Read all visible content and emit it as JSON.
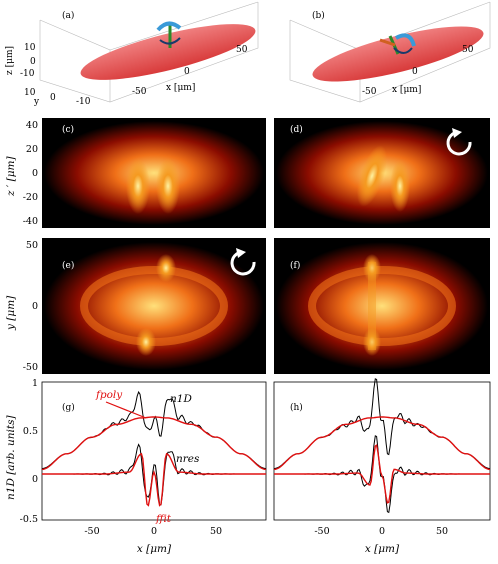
{
  "panels": {
    "a": "(a)",
    "b": "(b)",
    "c": "(c)",
    "d": "(d)",
    "e": "(e)",
    "f": "(f)",
    "g": "(g)",
    "h": "(h)"
  },
  "top_3d": {
    "z_label": "z [μm]",
    "y_label": "y",
    "x_label": "x [μm]",
    "z_ticks": [
      "10",
      "0",
      "-10"
    ],
    "y_ticks": [
      "10",
      "0",
      "-10"
    ],
    "x_ticks": [
      "-50",
      "0",
      "50"
    ]
  },
  "density_maps": {
    "zp_label": "z ′ [μm]",
    "y_label": "y [μm]",
    "zp_ticks": [
      "40",
      "20",
      "0",
      "-20",
      "-40"
    ],
    "y_ticks": [
      "50",
      "0",
      "-50"
    ]
  },
  "profiles": {
    "ylabel": "n1D [arb. units]",
    "xlabel": "x [μm]",
    "y_ticks": [
      "1",
      "0.5",
      "0",
      "-0.5"
    ],
    "x_ticks": [
      "-50",
      "0",
      "50"
    ],
    "annotations": {
      "f_poly": "fpoly",
      "n_1d": "n1D",
      "n_res": "nres",
      "f_fit": "ffit"
    }
  },
  "colors": {
    "ellipsoid": "#e05050",
    "fit_red": "#e01010",
    "data_black": "#000000"
  },
  "chart_data": [
    {
      "type": "line",
      "panel": "(g)",
      "xlim": [
        -90,
        90
      ],
      "ylim": [
        -0.5,
        1
      ],
      "xlabel": "x [μm]",
      "ylabel": "n1D [arb. units]",
      "series": [
        {
          "name": "n1D",
          "x": [
            -90,
            -70,
            -50,
            -30,
            -20,
            -12,
            -5,
            0,
            5,
            12,
            20,
            30,
            50,
            70,
            90
          ],
          "values": [
            0.06,
            0.22,
            0.4,
            0.55,
            0.62,
            0.85,
            0.45,
            0.6,
            0.45,
            0.85,
            0.62,
            0.55,
            0.4,
            0.22,
            0.06
          ]
        },
        {
          "name": "fpoly",
          "x": [
            -90,
            -70,
            -50,
            -30,
            -10,
            0,
            10,
            30,
            50,
            70,
            90
          ],
          "values": [
            0.05,
            0.22,
            0.4,
            0.54,
            0.61,
            0.62,
            0.61,
            0.54,
            0.4,
            0.22,
            0.05
          ]
        },
        {
          "name": "nres",
          "x": [
            -90,
            -40,
            -20,
            -12,
            -5,
            0,
            5,
            12,
            20,
            40,
            90
          ],
          "values": [
            0,
            0,
            0.03,
            0.28,
            -0.3,
            0.1,
            -0.3,
            0.28,
            0.03,
            0,
            0
          ]
        },
        {
          "name": "ffit",
          "x": [
            -90,
            -40,
            -20,
            -10,
            -5,
            0,
            5,
            10,
            20,
            40,
            90
          ],
          "values": [
            0,
            0,
            0.02,
            0.22,
            -0.35,
            0.02,
            -0.35,
            0.22,
            0.02,
            0,
            0
          ]
        }
      ]
    },
    {
      "type": "line",
      "panel": "(h)",
      "xlim": [
        -90,
        90
      ],
      "ylim": [
        -0.5,
        1
      ],
      "xlabel": "x [μm]",
      "series": [
        {
          "name": "n1D",
          "x": [
            -90,
            -70,
            -50,
            -30,
            -20,
            -12,
            -5,
            0,
            5,
            12,
            20,
            30,
            50,
            70,
            90
          ],
          "values": [
            0.06,
            0.22,
            0.4,
            0.53,
            0.6,
            0.45,
            1.0,
            0.58,
            0.25,
            0.65,
            0.58,
            0.53,
            0.4,
            0.22,
            0.06
          ]
        },
        {
          "name": "fpoly",
          "x": [
            -90,
            -70,
            -50,
            -30,
            -10,
            0,
            10,
            30,
            50,
            70,
            90
          ],
          "values": [
            0.05,
            0.22,
            0.4,
            0.54,
            0.61,
            0.62,
            0.61,
            0.54,
            0.4,
            0.22,
            0.05
          ]
        },
        {
          "name": "nres",
          "x": [
            -90,
            -40,
            -20,
            -12,
            -5,
            0,
            5,
            12,
            20,
            40,
            90
          ],
          "values": [
            0,
            0,
            0.02,
            -0.15,
            0.38,
            -0.03,
            -0.38,
            0.05,
            0.02,
            0,
            0
          ]
        },
        {
          "name": "ffit",
          "x": [
            -90,
            -40,
            -20,
            -10,
            -5,
            0,
            5,
            10,
            20,
            40,
            90
          ],
          "values": [
            0,
            0,
            0.01,
            -0.12,
            0.32,
            -0.02,
            -0.32,
            0.05,
            0.01,
            0,
            0
          ]
        }
      ]
    }
  ]
}
